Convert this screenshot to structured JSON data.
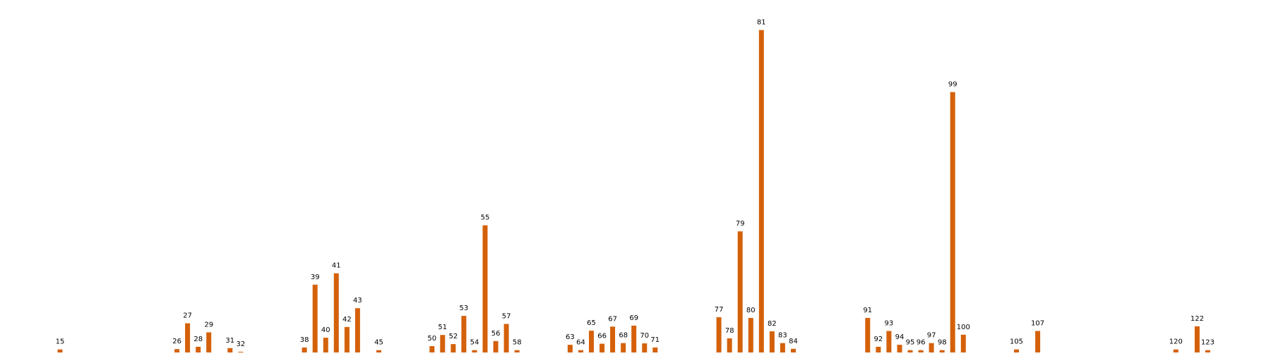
{
  "chart_data": {
    "type": "bar",
    "title": "",
    "xlabel": "",
    "ylabel": "",
    "grid": false,
    "ylim": [
      0,
      1
    ],
    "bar_color": "#d4610a",
    "label_color": "#000000",
    "background": "#ffffff",
    "data_labels": true,
    "categories": [
      "15",
      "26",
      "27",
      "28",
      "29",
      "31",
      "32",
      "38",
      "39",
      "40",
      "41",
      "42",
      "43",
      "45",
      "50",
      "51",
      "52",
      "53",
      "54",
      "55",
      "56",
      "57",
      "58",
      "63",
      "64",
      "65",
      "66",
      "67",
      "68",
      "69",
      "70",
      "71",
      "77",
      "78",
      "79",
      "80",
      "82",
      "81",
      "83",
      "84",
      "91",
      "92",
      "93",
      "94",
      "95",
      "96",
      "97",
      "98",
      "99",
      "100",
      "105",
      "107",
      "120",
      "122",
      "123"
    ],
    "x": [
      15,
      26,
      27,
      28,
      29,
      31,
      32,
      38,
      39,
      40,
      41,
      42,
      43,
      45,
      50,
      51,
      52,
      53,
      54,
      55,
      56,
      57,
      58,
      63,
      64,
      65,
      66,
      67,
      68,
      69,
      70,
      71,
      77,
      78,
      79,
      80,
      82,
      81,
      83,
      84,
      91,
      92,
      93,
      94,
      95,
      96,
      97,
      98,
      99,
      100,
      105,
      107,
      120,
      122,
      123
    ],
    "values": [
      0.009,
      0.01,
      0.087,
      0.017,
      0.06,
      0.013,
      0.002,
      0.015,
      0.202,
      0.044,
      0.236,
      0.076,
      0.132,
      0.007,
      0.019,
      0.052,
      0.025,
      0.109,
      0.007,
      0.379,
      0.034,
      0.085,
      0.007,
      0.023,
      0.007,
      0.065,
      0.026,
      0.077,
      0.028,
      0.08,
      0.027,
      0.015,
      0.105,
      0.042,
      0.361,
      0.103,
      0.063,
      0.961,
      0.028,
      0.011,
      0.103,
      0.017,
      0.064,
      0.023,
      0.007,
      0.007,
      0.028,
      0.007,
      0.776,
      0.053,
      0.009,
      0.064,
      0.009,
      0.078,
      0.007
    ]
  }
}
